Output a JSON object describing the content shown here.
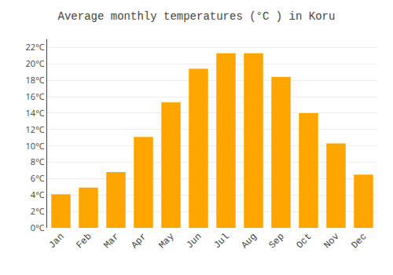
{
  "chart_data": {
    "type": "bar",
    "title": "Average monthly temperatures (°C ) in Koru",
    "categories": [
      "Jan",
      "Feb",
      "Mar",
      "Apr",
      "May",
      "Jun",
      "Jul",
      "Aug",
      "Sep",
      "Oct",
      "Nov",
      "Dec"
    ],
    "values": [
      4.1,
      4.9,
      6.8,
      11.1,
      15.3,
      19.4,
      21.3,
      21.3,
      18.4,
      14.0,
      10.3,
      6.5
    ],
    "color": "#FFA500",
    "ylim": [
      0,
      23
    ],
    "yticks": [
      {
        "value": 0,
        "label": "0°C"
      },
      {
        "value": 2,
        "label": "2°C"
      },
      {
        "value": 4,
        "label": "4°C"
      },
      {
        "value": 6,
        "label": "6°C"
      },
      {
        "value": 8,
        "label": "8°C"
      },
      {
        "value": 10,
        "label": "10°C"
      },
      {
        "value": 12,
        "label": "12°C"
      },
      {
        "value": 14,
        "label": "14°C"
      },
      {
        "value": 16,
        "label": "16°C"
      },
      {
        "value": 18,
        "label": "18°C"
      },
      {
        "value": 20,
        "label": "20°C"
      },
      {
        "value": 22,
        "label": "22°C"
      }
    ],
    "grid": true
  }
}
